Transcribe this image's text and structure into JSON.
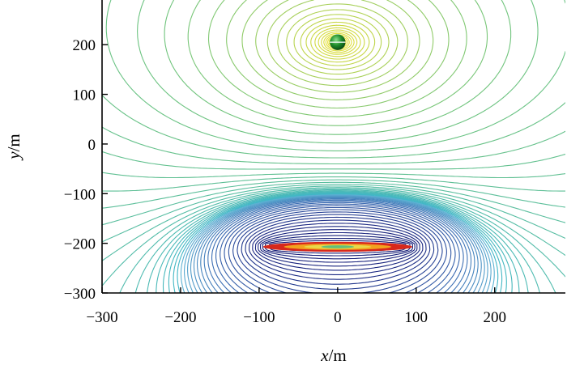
{
  "chart_data": {
    "type": "contour",
    "xlabel": {
      "var": "x",
      "unit": "/m"
    },
    "ylabel": {
      "var": "y",
      "unit": "/m"
    },
    "xlim": [
      -300,
      290
    ],
    "ylim": [
      -300,
      290
    ],
    "xticks": [
      "−300",
      "−200",
      "−100",
      "0",
      "100",
      "200"
    ],
    "xtick_values": [
      -300,
      -200,
      -100,
      0,
      100,
      200
    ],
    "yticks": [
      "200",
      "100",
      "0",
      "−100",
      "−200",
      "−300"
    ],
    "ytick_values": [
      200,
      100,
      0,
      -100,
      -200,
      -300
    ],
    "grid": false,
    "sources": [
      {
        "shape": "small-sphere",
        "center": [
          0,
          205
        ],
        "radius": 10
      },
      {
        "shape": "elongated-ellipse",
        "center": [
          0,
          -207
        ],
        "half_width": 95,
        "half_height": 10
      }
    ],
    "colors": {
      "upper_near_source": "#f1e437",
      "upper_far": "#3fb6c9",
      "lower_far": "#141a73",
      "lower_core_outer": "#d7281c",
      "lower_core_mid": "#f2a31f",
      "lower_core_inner": "#62c07a",
      "sphere": "#1e8d2b"
    }
  }
}
